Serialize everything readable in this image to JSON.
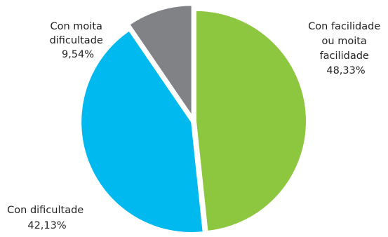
{
  "chart_data": {
    "type": "pie",
    "slices": [
      {
        "label_lines": [
          "Con facilidade",
          "ou moita",
          "facilidade"
        ],
        "value": 48.33,
        "value_label": "48,33%",
        "color": "#8DC63F"
      },
      {
        "label_lines": [
          "Con dificultade"
        ],
        "value": 42.13,
        "value_label": "42,13%",
        "color": "#00B9EF"
      },
      {
        "label_lines": [
          "Con moita",
          "dificultade"
        ],
        "value": 9.54,
        "value_label": "9,54%",
        "color": "#808285"
      }
    ],
    "start_angle_deg": 0,
    "direction": "clockwise",
    "legend": "none",
    "exploded": true
  }
}
